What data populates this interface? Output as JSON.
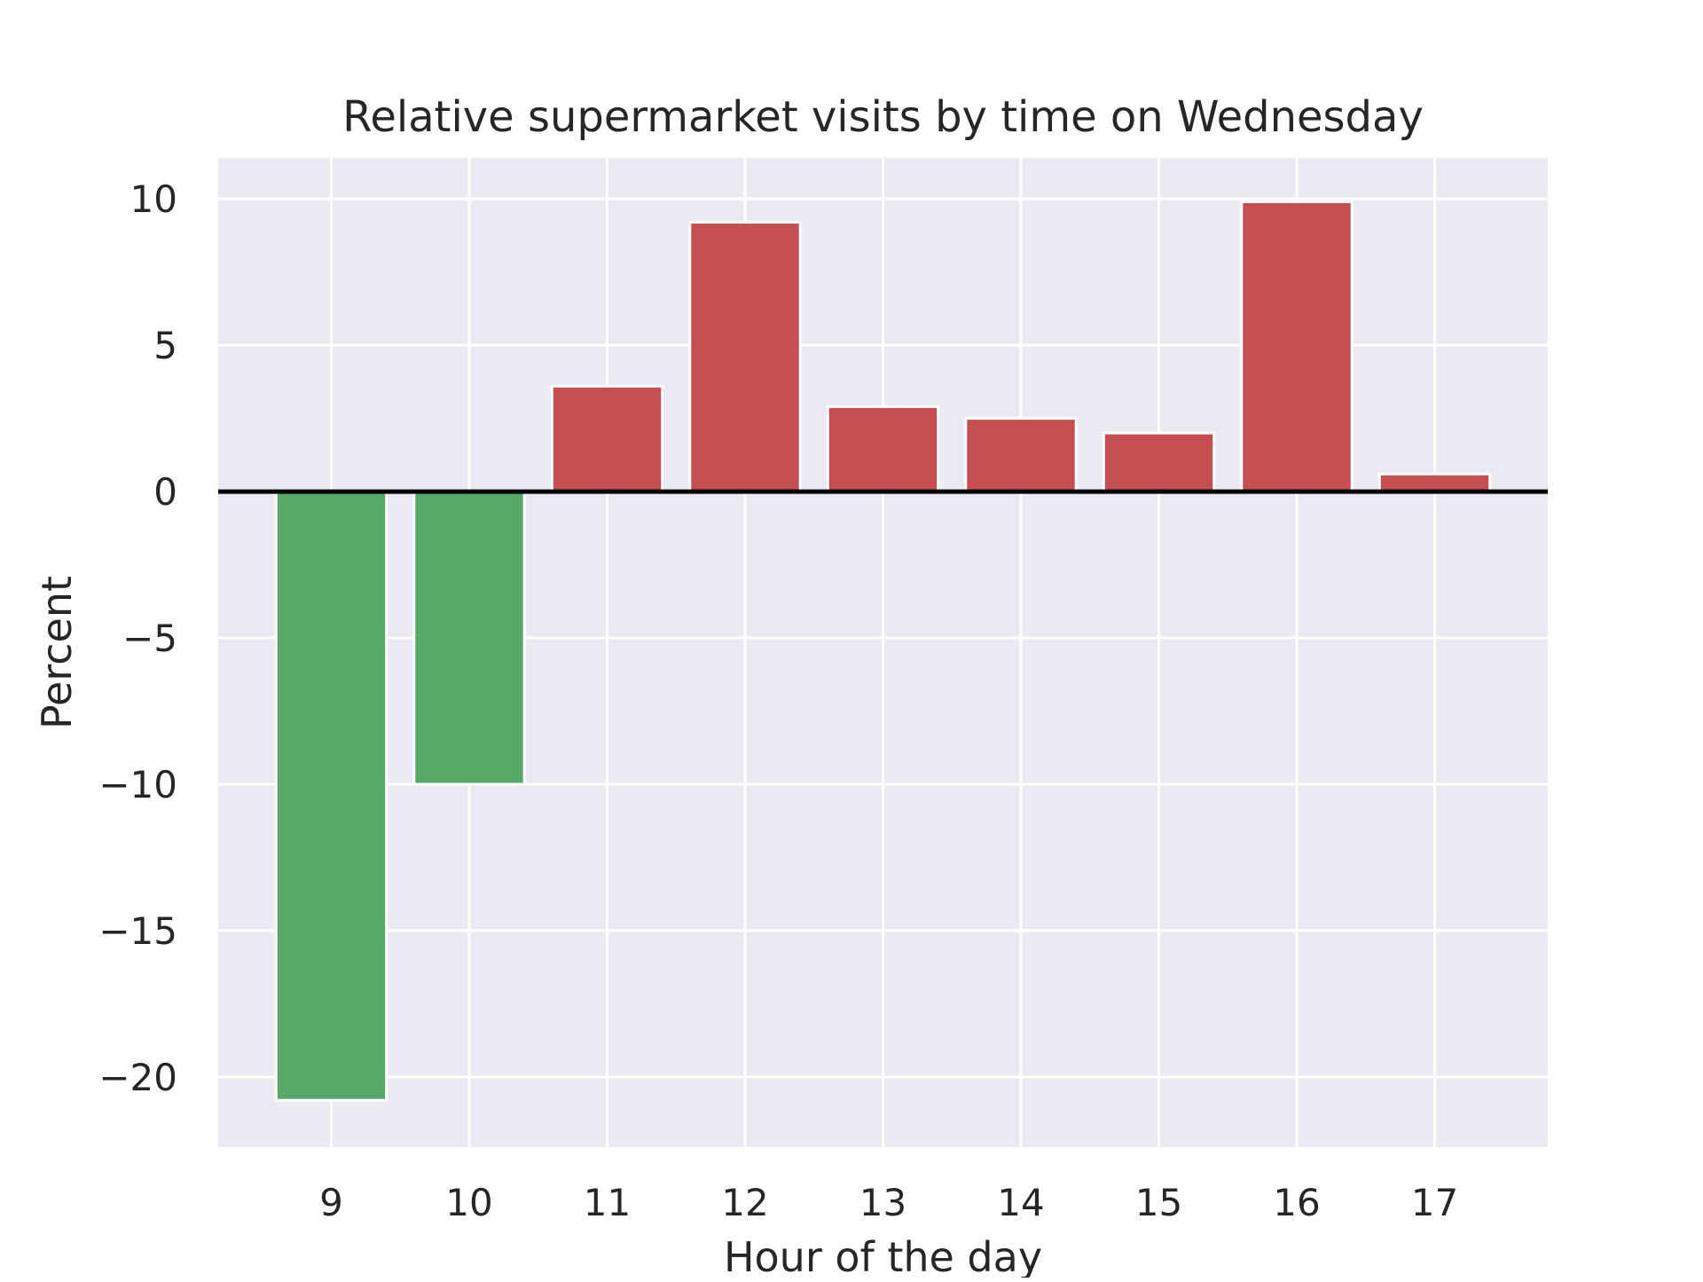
{
  "chart_data": {
    "type": "bar",
    "title": "Relative supermarket visits by time on Wednesday",
    "xlabel": "Hour of the day",
    "ylabel": "Percent",
    "categories": [
      "9",
      "10",
      "11",
      "12",
      "13",
      "14",
      "15",
      "16",
      "17"
    ],
    "values": [
      -20.8,
      -10.0,
      3.6,
      9.2,
      2.9,
      2.5,
      2.0,
      9.9,
      0.6
    ],
    "ylim": [
      -22.4,
      11.4
    ],
    "yticks": [
      10,
      5,
      0,
      -5,
      -10,
      -15,
      -20
    ],
    "ytick_labels": [
      "10",
      "5",
      "0",
      "−5",
      "−10",
      "−15",
      "−20"
    ],
    "grid": true,
    "colors": {
      "positive": "#c44e52",
      "negative": "#55a868",
      "plot_background": "#eaeaf2",
      "grid": "#ffffff",
      "zero_line": "#000000",
      "text": "#262626"
    }
  }
}
